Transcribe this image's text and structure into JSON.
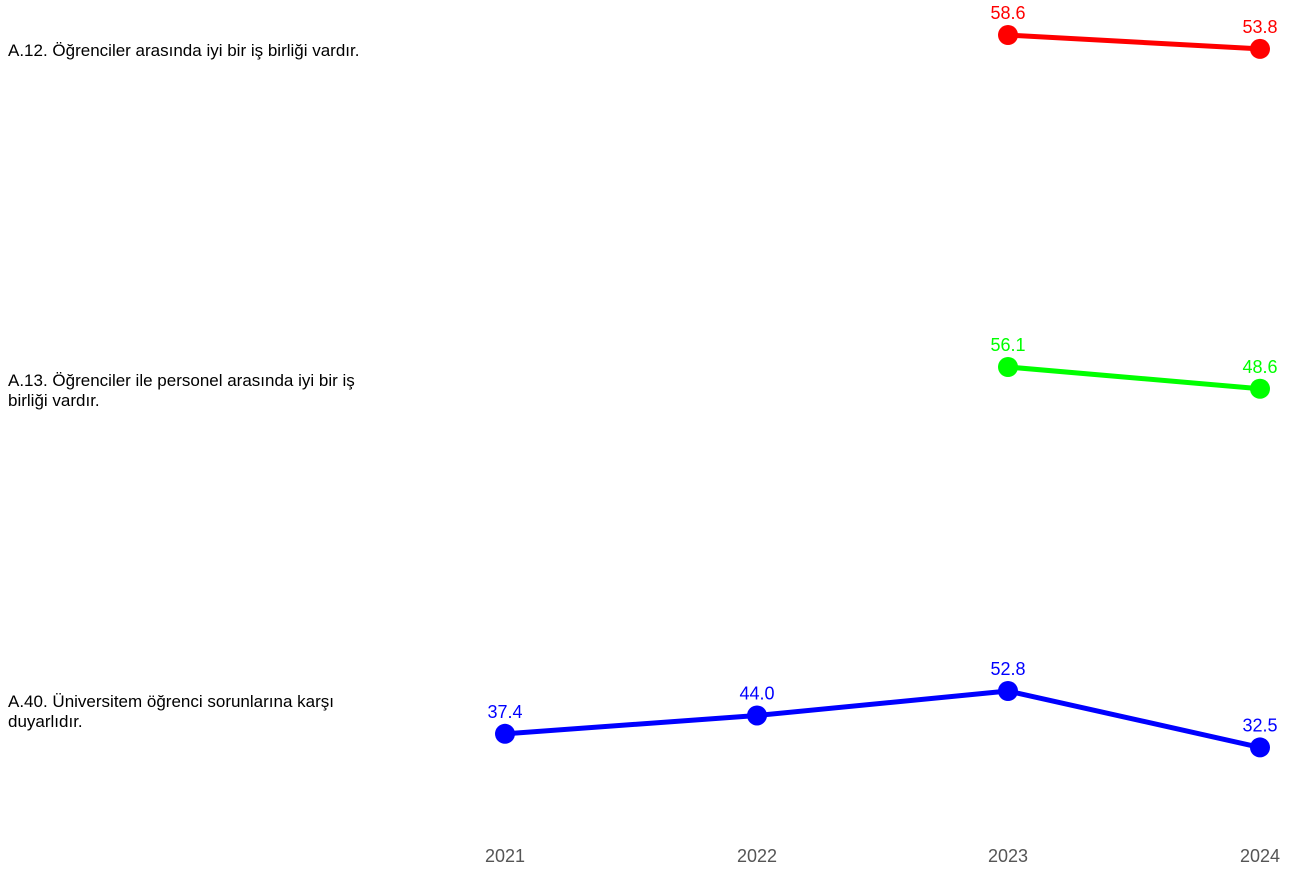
{
  "chart_data": {
    "type": "line",
    "categories": [
      "2021",
      "2022",
      "2023",
      "2024"
    ],
    "series": [
      {
        "name": "A.12. Öğrenciler arasında iyi bir iş birliği vardır.",
        "color": "#ff0000",
        "values": [
          null,
          null,
          58.6,
          53.8
        ],
        "labels": [
          null,
          null,
          "58.6",
          "53.8"
        ]
      },
      {
        "name": "A.13. Öğrenciler ile personel arasında iyi bir iş birliği vardır.",
        "color": "#00ff00",
        "values": [
          null,
          null,
          56.1,
          48.6
        ],
        "labels": [
          null,
          null,
          "56.1",
          "48.6"
        ]
      },
      {
        "name": "A.40. Üniversitem öğrenci sorunlarına karşı duyarlıdır.",
        "color": "#0000ff",
        "values": [
          37.4,
          44.0,
          52.8,
          32.5
        ],
        "labels": [
          "37.4",
          "44.0",
          "52.8",
          "32.5"
        ]
      }
    ],
    "grid": false,
    "legend": "none"
  }
}
